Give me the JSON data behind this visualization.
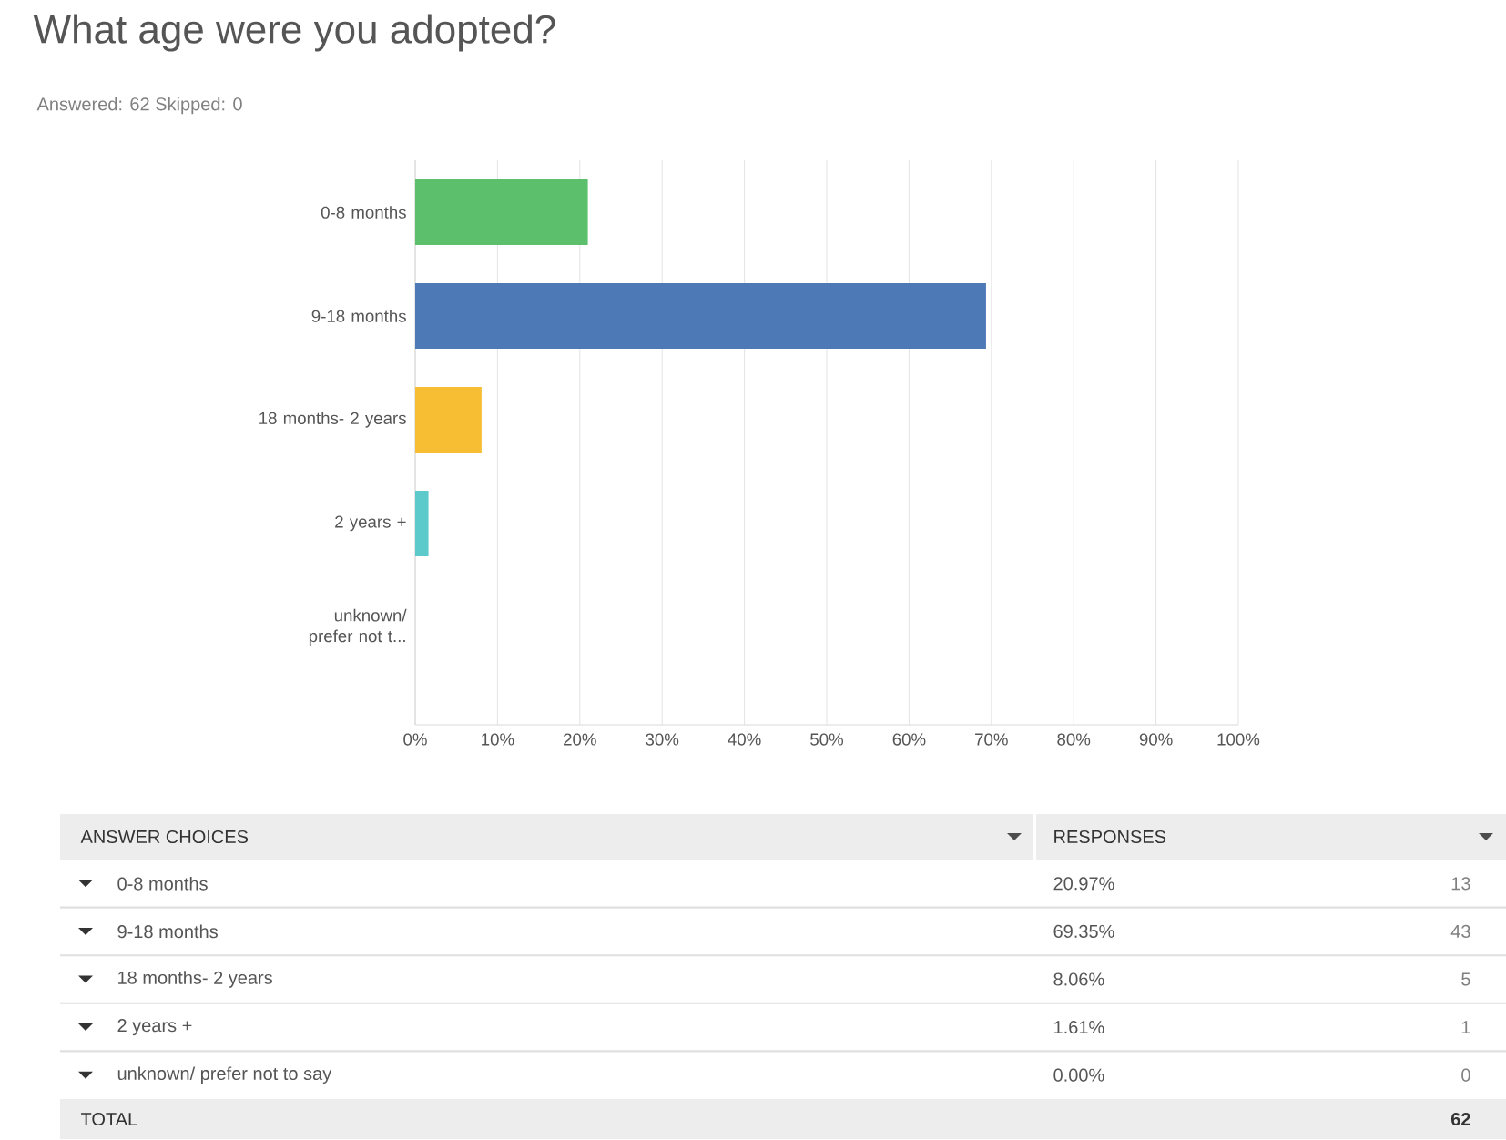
{
  "chart_data": {
    "type": "bar",
    "orientation": "horizontal",
    "title": "What age were you adopted?",
    "subtitle": "Answered: 62    Skipped: 0",
    "categories": [
      "0-8 months",
      "9-18 months",
      "18 months- 2 years",
      "2 years +",
      "unknown/ prefer not t..."
    ],
    "values": [
      20.97,
      69.35,
      8.06,
      1.61,
      0.0
    ],
    "colors": [
      "#5bbf6b",
      "#4d79b6",
      "#f7bd33",
      "#5cc9ca",
      "#999999"
    ],
    "xlim": [
      0,
      100
    ],
    "xticks": [
      {
        "value": 0,
        "label": "0%"
      },
      {
        "value": 10,
        "label": "10%"
      },
      {
        "value": 20,
        "label": "20%"
      },
      {
        "value": 30,
        "label": "30%"
      },
      {
        "value": 40,
        "label": "40%"
      },
      {
        "value": 50,
        "label": "50%"
      },
      {
        "value": 60,
        "label": "60%"
      },
      {
        "value": 70,
        "label": "70%"
      },
      {
        "value": 80,
        "label": "80%"
      },
      {
        "value": 90,
        "label": "90%"
      },
      {
        "value": 100,
        "label": "100%"
      }
    ],
    "grid": "x",
    "annotations": [
      "ANSWER CHOICES",
      "RESPONSES",
      "0-8 months",
      "9-18 months",
      "18 months- 2 years",
      "2 years +",
      "unknown/ prefer not to say",
      "20.97%",
      "69.35%",
      "8.06%",
      "1.61%",
      "0.00%",
      "13",
      "43",
      "5",
      "1",
      "0",
      "TOTAL",
      "62"
    ]
  }
}
